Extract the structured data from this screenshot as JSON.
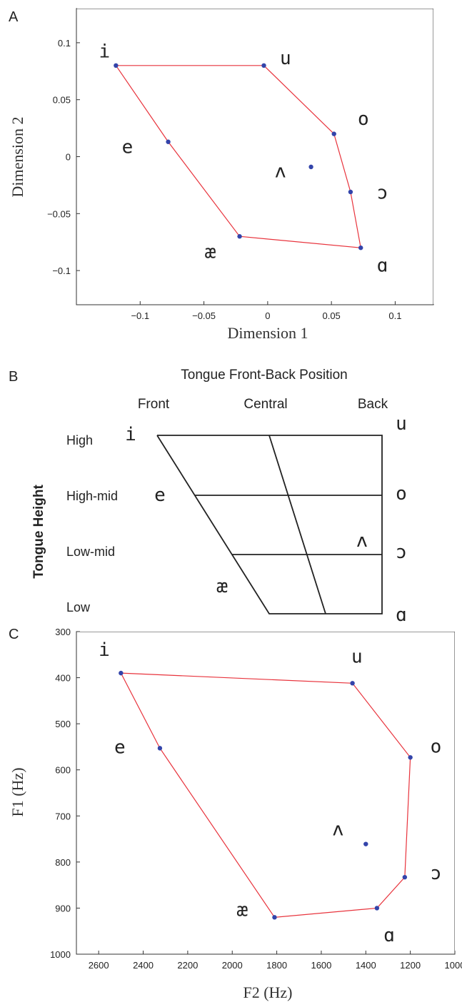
{
  "chart_data": [
    {
      "panel": "A",
      "type": "scatter",
      "xlabel": "Dimension 1",
      "ylabel": "Dimension 2",
      "xlim": [
        -0.15,
        0.13
      ],
      "ylim": [
        -0.13,
        0.13
      ],
      "xticks": [
        -0.1,
        -0.05,
        0,
        0.05,
        0.1
      ],
      "xtick_labels": [
        "−0.1",
        "−0.05",
        "0",
        "0.05",
        "0.1"
      ],
      "yticks": [
        0.1,
        0.05,
        0,
        -0.05,
        -0.1
      ],
      "ytick_labels": [
        "0.1",
        "0.05",
        "0",
        "−0.05",
        "−0.1"
      ],
      "points": [
        {
          "vowel": "i",
          "x": -0.119,
          "y": 0.08
        },
        {
          "vowel": "u",
          "x": -0.003,
          "y": 0.08
        },
        {
          "vowel": "o",
          "x": 0.052,
          "y": 0.02
        },
        {
          "vowel": "ɔ",
          "x": 0.065,
          "y": -0.031
        },
        {
          "vowel": "ɑ",
          "x": 0.073,
          "y": -0.08
        },
        {
          "vowel": "æ",
          "x": -0.022,
          "y": -0.07
        },
        {
          "vowel": "e",
          "x": -0.078,
          "y": 0.013
        },
        {
          "vowel": "ʌ",
          "x": 0.034,
          "y": -0.009
        }
      ],
      "hull_order": [
        "i",
        "u",
        "o",
        "ɔ",
        "ɑ",
        "æ",
        "e"
      ],
      "labels": [
        {
          "text": "i",
          "x": -0.128,
          "y": 0.092
        },
        {
          "text": "u",
          "x": 0.014,
          "y": 0.086
        },
        {
          "text": "o",
          "x": 0.075,
          "y": 0.033
        },
        {
          "text": "e",
          "x": -0.11,
          "y": 0.008
        },
        {
          "text": "ʌ",
          "x": 0.01,
          "y": -0.013
        },
        {
          "text": "ɔ",
          "x": 0.09,
          "y": -0.032
        },
        {
          "text": "æ",
          "x": -0.045,
          "y": -0.084
        },
        {
          "text": "ɑ",
          "x": 0.09,
          "y": -0.096
        }
      ]
    },
    {
      "panel": "B",
      "type": "other",
      "title": "Tongue Front-Back Position",
      "columns": [
        "Front",
        "Central",
        "Back"
      ],
      "side_label": "Tongue Height",
      "rows": [
        "High",
        "High-mid",
        "Low-mid",
        "Low"
      ],
      "vowels": [
        "i",
        "e",
        "æ",
        "u",
        "o",
        "ʌ",
        "ɔ",
        "ɑ"
      ]
    },
    {
      "panel": "C",
      "type": "scatter",
      "xlabel": "F2  (Hz)",
      "ylabel": "F1  (Hz)",
      "xlim": [
        2700,
        1000
      ],
      "ylim": [
        1000,
        300
      ],
      "xticks": [
        2600,
        2400,
        2200,
        2000,
        1800,
        1600,
        1400,
        1200,
        1000
      ],
      "yticks": [
        300,
        400,
        500,
        600,
        700,
        800,
        900,
        1000
      ],
      "points": [
        {
          "vowel": "i",
          "x": 2500,
          "y": 390
        },
        {
          "vowel": "u",
          "x": 1460,
          "y": 412
        },
        {
          "vowel": "o",
          "x": 1200,
          "y": 573
        },
        {
          "vowel": "ɔ",
          "x": 1225,
          "y": 833
        },
        {
          "vowel": "ɑ",
          "x": 1350,
          "y": 900
        },
        {
          "vowel": "æ",
          "x": 1810,
          "y": 920
        },
        {
          "vowel": "e",
          "x": 2325,
          "y": 553
        },
        {
          "vowel": "ʌ",
          "x": 1400,
          "y": 761
        }
      ],
      "hull_order": [
        "i",
        "u",
        "o",
        "ɔ",
        "ɑ",
        "æ",
        "e"
      ],
      "labels": [
        {
          "text": "i",
          "x": 2575,
          "y": 340
        },
        {
          "text": "u",
          "x": 1440,
          "y": 355
        },
        {
          "text": "o",
          "x": 1085,
          "y": 550
        },
        {
          "text": "e",
          "x": 2505,
          "y": 552
        },
        {
          "text": "ʌ",
          "x": 1525,
          "y": 730
        },
        {
          "text": "ɔ",
          "x": 1085,
          "y": 825
        },
        {
          "text": "æ",
          "x": 1955,
          "y": 905
        },
        {
          "text": "ɑ",
          "x": 1295,
          "y": 960
        }
      ]
    }
  ],
  "panel_labels": {
    "a": "A",
    "b": "B",
    "c": "C"
  },
  "colors": {
    "hull": "#e8333c",
    "points": "#3344aa"
  }
}
